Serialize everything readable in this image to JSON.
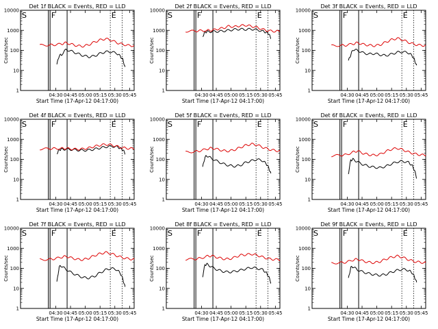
{
  "chart_data": [
    {
      "type": "line",
      "title": "Det 1f BLACK = Events, RED = LLD",
      "xlabel": "Start Time (17-Apr-12 04:17:00)",
      "ylabel": "Counts/sec",
      "y_scale": "log",
      "ylim": [
        1,
        10000
      ],
      "x_ticks": [
        "04:30",
        "04:45",
        "05:00",
        "05:15",
        "05:30",
        "05:45"
      ],
      "y_ticks": [
        "1",
        "10",
        "100",
        "1000",
        "10000"
      ],
      "flags": [
        "S",
        "F",
        "E"
      ],
      "series": [
        {
          "color": "#000000",
          "x": [
            32,
            34,
            36,
            40,
            45,
            50,
            55,
            60,
            65,
            70,
            75,
            80,
            85,
            88,
            90,
            92
          ],
          "y": [
            20,
            55,
            60,
            110,
            90,
            70,
            55,
            48,
            52,
            70,
            85,
            85,
            70,
            50,
            35,
            15
          ]
        },
        {
          "color": "#dd0000",
          "x": [
            17,
            25,
            30,
            36,
            40,
            45,
            50,
            55,
            60,
            65,
            70,
            75,
            80,
            85,
            90,
            95,
            100
          ],
          "y": [
            180,
            185,
            190,
            210,
            240,
            200,
            170,
            160,
            190,
            260,
            330,
            380,
            320,
            240,
            200,
            175,
            170
          ]
        }
      ]
    },
    {
      "type": "line",
      "title": "Det 2f BLACK = Events, RED = LLD",
      "xlabel": "Start Time (17-Apr-12 04:17:00)",
      "ylabel": "Counts/sec",
      "y_scale": "log",
      "ylim": [
        1,
        10000
      ],
      "x_ticks": [
        "04:30",
        "04:45",
        "05:00",
        "05:15",
        "05:30",
        "05:45"
      ],
      "y_ticks": [
        "1",
        "10",
        "100",
        "1000",
        "10000"
      ],
      "flags": [
        "S",
        "F",
        "E"
      ],
      "series": [
        {
          "color": "#000000",
          "x": [
            32,
            34,
            36,
            40,
            45,
            50,
            55,
            60,
            65,
            70,
            75,
            80,
            85,
            88,
            90,
            92
          ],
          "y": [
            500,
            820,
            850,
            860,
            880,
            920,
            1000,
            1100,
            1150,
            1100,
            1150,
            1050,
            900,
            800,
            700,
            400
          ]
        },
        {
          "color": "#dd0000",
          "x": [
            17,
            25,
            30,
            36,
            40,
            45,
            50,
            55,
            60,
            65,
            70,
            75,
            80,
            85,
            90,
            95,
            100
          ],
          "y": [
            900,
            920,
            950,
            980,
            1000,
            1150,
            1300,
            1600,
            1500,
            1700,
            1800,
            1600,
            1400,
            1100,
            950,
            900,
            900
          ]
        }
      ]
    },
    {
      "type": "line",
      "title": "Det 3f BLACK = Events, RED = LLD",
      "xlabel": "Start Time (17-Apr-12 04:17:00)",
      "ylabel": "Counts/sec",
      "y_scale": "log",
      "ylim": [
        1,
        10000
      ],
      "x_ticks": [
        "04:30",
        "04:45",
        "05:00",
        "05:15",
        "05:30",
        "05:45"
      ],
      "y_ticks": [
        "1",
        "10",
        "100",
        "1000",
        "10000"
      ],
      "flags": [
        "S",
        "F",
        "E"
      ],
      "series": [
        {
          "color": "#000000",
          "x": [
            32,
            34,
            36,
            40,
            45,
            50,
            55,
            60,
            65,
            70,
            75,
            80,
            85,
            88,
            90,
            92
          ],
          "y": [
            30,
            60,
            110,
            100,
            75,
            65,
            70,
            60,
            55,
            65,
            80,
            85,
            75,
            55,
            35,
            18
          ]
        },
        {
          "color": "#dd0000",
          "x": [
            17,
            25,
            30,
            36,
            40,
            45,
            50,
            55,
            60,
            65,
            70,
            75,
            80,
            85,
            90,
            95,
            100
          ],
          "y": [
            170,
            175,
            180,
            210,
            240,
            200,
            180,
            170,
            190,
            260,
            340,
            400,
            330,
            250,
            200,
            180,
            175
          ]
        }
      ]
    },
    {
      "type": "line",
      "title": "Det 4f BLACK = Events, RED = LLD",
      "xlabel": "Start Time (17-Apr-12 04:17:00)",
      "ylabel": "Counts/sec",
      "y_scale": "log",
      "ylim": [
        1,
        10000
      ],
      "x_ticks": [
        "04:30",
        "04:45",
        "05:00",
        "05:15",
        "05:30",
        "05:45"
      ],
      "y_ticks": [
        "1",
        "10",
        "100",
        "1000",
        "10000"
      ],
      "flags": [
        "S",
        "F",
        "E"
      ],
      "series": [
        {
          "color": "#000000",
          "x": [
            32,
            34,
            36,
            40,
            45,
            50,
            55,
            60,
            65,
            70,
            75,
            80,
            85,
            88,
            90,
            92
          ],
          "y": [
            200,
            300,
            320,
            320,
            310,
            290,
            280,
            290,
            320,
            370,
            420,
            450,
            420,
            360,
            300,
            200
          ]
        },
        {
          "color": "#dd0000",
          "x": [
            17,
            25,
            30,
            36,
            40,
            45,
            50,
            55,
            60,
            65,
            70,
            75,
            80,
            85,
            90,
            95,
            100
          ],
          "y": [
            330,
            340,
            345,
            350,
            350,
            330,
            320,
            330,
            370,
            440,
            510,
            560,
            520,
            440,
            380,
            350,
            340
          ]
        }
      ]
    },
    {
      "type": "line",
      "title": "Det 5f BLACK = Events, RED = LLD",
      "xlabel": "Start Time (17-Apr-12 04:17:00)",
      "ylabel": "Counts/sec",
      "y_scale": "log",
      "ylim": [
        1,
        10000
      ],
      "x_ticks": [
        "04:30",
        "04:45",
        "05:00",
        "05:15",
        "05:30",
        "05:45"
      ],
      "y_ticks": [
        "1",
        "10",
        "100",
        "1000",
        "10000"
      ],
      "flags": [
        "S",
        "F",
        "E"
      ],
      "series": [
        {
          "color": "#000000",
          "x": [
            32,
            34,
            36,
            40,
            45,
            50,
            55,
            60,
            65,
            70,
            75,
            80,
            85,
            88,
            90,
            92
          ],
          "y": [
            40,
            130,
            150,
            110,
            80,
            60,
            50,
            45,
            50,
            70,
            85,
            100,
            85,
            60,
            40,
            20
          ]
        },
        {
          "color": "#dd0000",
          "x": [
            17,
            25,
            30,
            36,
            40,
            45,
            50,
            55,
            60,
            65,
            70,
            75,
            80,
            85,
            90,
            95,
            100
          ],
          "y": [
            230,
            240,
            270,
            330,
            370,
            320,
            270,
            260,
            300,
            390,
            500,
            580,
            520,
            400,
            320,
            280,
            260
          ]
        }
      ]
    },
    {
      "type": "line",
      "title": "Det 6f BLACK = Events, RED = LLD",
      "xlabel": "Start Time (17-Apr-12 04:17:00)",
      "ylabel": "Counts/sec",
      "y_scale": "log",
      "ylim": [
        1,
        10000
      ],
      "x_ticks": [
        "04:30",
        "04:45",
        "05:00",
        "05:15",
        "05:30",
        "05:45"
      ],
      "y_ticks": [
        "1",
        "10",
        "100",
        "1000",
        "10000"
      ],
      "flags": [
        "S",
        "F",
        "E"
      ],
      "series": [
        {
          "color": "#000000",
          "x": [
            32,
            34,
            36,
            40,
            45,
            50,
            55,
            60,
            65,
            70,
            75,
            80,
            85,
            88,
            90,
            92
          ],
          "y": [
            20,
            90,
            100,
            75,
            55,
            45,
            40,
            38,
            45,
            60,
            75,
            80,
            70,
            50,
            30,
            12
          ]
        },
        {
          "color": "#dd0000",
          "x": [
            17,
            25,
            30,
            36,
            40,
            45,
            50,
            55,
            60,
            65,
            70,
            75,
            80,
            85,
            90,
            95,
            100
          ],
          "y": [
            150,
            160,
            170,
            230,
            260,
            200,
            170,
            160,
            180,
            250,
            320,
            360,
            300,
            230,
            190,
            170,
            160
          ]
        }
      ]
    },
    {
      "type": "line",
      "title": "Det 7f BLACK = Events, RED = LLD",
      "xlabel": "Start Time (17-Apr-12 04:17:00)",
      "ylabel": "Counts/sec",
      "y_scale": "log",
      "ylim": [
        1,
        10000
      ],
      "x_ticks": [
        "04:30",
        "04:45",
        "05:00",
        "05:15",
        "05:30",
        "05:45"
      ],
      "y_ticks": [
        "1",
        "10",
        "100",
        "1000",
        "10000"
      ],
      "flags": [
        "S",
        "F",
        "E"
      ],
      "series": [
        {
          "color": "#000000",
          "x": [
            32,
            34,
            36,
            40,
            45,
            50,
            55,
            60,
            65,
            70,
            75,
            80,
            85,
            88,
            90,
            92
          ],
          "y": [
            20,
            120,
            130,
            90,
            60,
            45,
            35,
            33,
            40,
            60,
            85,
            100,
            85,
            55,
            30,
            12
          ]
        },
        {
          "color": "#dd0000",
          "x": [
            17,
            25,
            30,
            36,
            40,
            45,
            50,
            55,
            60,
            65,
            70,
            75,
            80,
            85,
            90,
            95,
            100
          ],
          "y": [
            270,
            280,
            300,
            360,
            400,
            330,
            280,
            270,
            320,
            430,
            540,
            620,
            540,
            420,
            340,
            300,
            280
          ]
        }
      ]
    },
    {
      "type": "line",
      "title": "Det 8f BLACK = Events, RED = LLD",
      "xlabel": "Start Time (17-Apr-12 04:17:00)",
      "ylabel": "Counts/sec",
      "y_scale": "log",
      "ylim": [
        1,
        10000
      ],
      "x_ticks": [
        "04:30",
        "04:45",
        "05:00",
        "05:15",
        "05:30",
        "05:45"
      ],
      "y_ticks": [
        "1",
        "10",
        "100",
        "1000",
        "10000"
      ],
      "flags": [
        "S",
        "F",
        "E"
      ],
      "series": [
        {
          "color": "#000000",
          "x": [
            32,
            34,
            36,
            40,
            45,
            50,
            55,
            60,
            65,
            70,
            75,
            80,
            85,
            88,
            90,
            92
          ],
          "y": [
            40,
            150,
            160,
            115,
            85,
            70,
            65,
            70,
            80,
            95,
            110,
            100,
            85,
            60,
            40,
            20
          ]
        },
        {
          "color": "#dd0000",
          "x": [
            17,
            25,
            30,
            36,
            40,
            45,
            50,
            55,
            60,
            65,
            70,
            75,
            80,
            85,
            90,
            95,
            100
          ],
          "y": [
            280,
            290,
            320,
            400,
            420,
            350,
            300,
            290,
            350,
            450,
            480,
            520,
            450,
            360,
            300,
            280,
            270
          ]
        }
      ]
    },
    {
      "type": "line",
      "title": "Det 9f BLACK = Events, RED = LLD",
      "xlabel": "Start Time (17-Apr-12 04:17:00)",
      "ylabel": "Counts/sec",
      "y_scale": "log",
      "ylim": [
        1,
        10000
      ],
      "x_ticks": [
        "04:30",
        "04:45",
        "05:00",
        "05:15",
        "05:30",
        "05:45"
      ],
      "y_ticks": [
        "1",
        "10",
        "100",
        "1000",
        "10000"
      ],
      "flags": [
        "S",
        "F",
        "E"
      ],
      "series": [
        {
          "color": "#000000",
          "x": [
            32,
            34,
            36,
            40,
            45,
            50,
            55,
            60,
            65,
            70,
            75,
            80,
            85,
            88,
            90,
            92
          ],
          "y": [
            30,
            110,
            120,
            85,
            65,
            55,
            48,
            45,
            50,
            65,
            80,
            90,
            80,
            60,
            40,
            20
          ]
        },
        {
          "color": "#dd0000",
          "x": [
            17,
            25,
            30,
            36,
            40,
            45,
            50,
            55,
            60,
            65,
            70,
            75,
            80,
            85,
            90,
            95,
            100
          ],
          "y": [
            180,
            190,
            200,
            260,
            290,
            230,
            200,
            190,
            220,
            290,
            360,
            410,
            350,
            270,
            220,
            200,
            190
          ]
        }
      ]
    }
  ]
}
